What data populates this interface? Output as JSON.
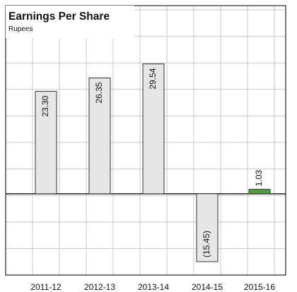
{
  "chart_data": {
    "type": "bar",
    "title": "Earnings Per Share",
    "subtitle": "Rupees",
    "categories": [
      "2011-12",
      "2012-13",
      "2013-14",
      "2014-15",
      "2015-16"
    ],
    "values": [
      23.3,
      26.35,
      29.54,
      -15.45,
      1.03
    ],
    "value_labels": [
      "23.30",
      "26.35",
      "29.54",
      "(15.45)",
      "1.03"
    ],
    "colors": [
      "#e6e6e6",
      "#e6e6e6",
      "#e6e6e6",
      "#e6e6e6",
      "#4f9d3f"
    ],
    "ylim": [
      -18.5,
      42.8
    ],
    "grid": true
  }
}
